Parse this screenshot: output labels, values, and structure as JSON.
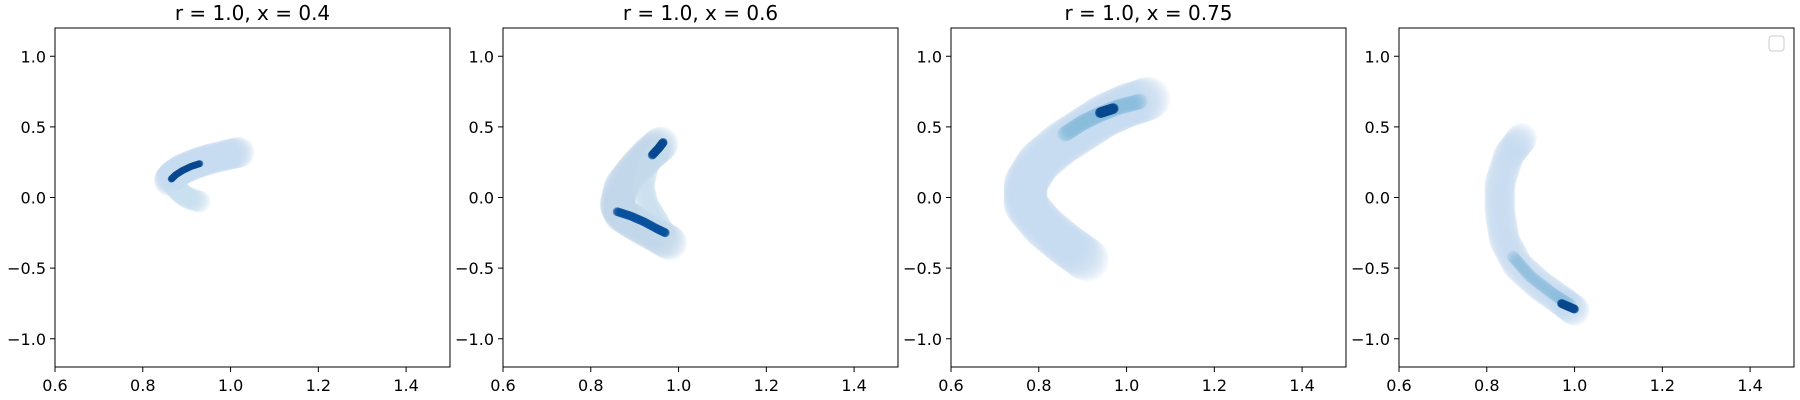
{
  "chart_data": [
    {
      "type": "heatmap",
      "title": "r = 1.0, x = 0.4",
      "xlim": [
        0.6,
        1.5
      ],
      "ylim": [
        -1.2,
        1.2
      ],
      "xticks": [
        "0.6",
        "0.8",
        "1.0",
        "1.2",
        "1.4"
      ],
      "yticks": [
        "1.0",
        "0.5",
        "0.0",
        "−0.5",
        "−1.0"
      ],
      "colormap": "Blues",
      "grid": false,
      "density_curves": [
        {
          "points": [
            [
              0.86,
              0.12
            ],
            [
              0.87,
              0.16
            ],
            [
              0.89,
              0.2
            ],
            [
              0.92,
              0.24
            ],
            [
              0.95,
              0.27
            ],
            [
              0.99,
              0.3
            ],
            [
              1.02,
              0.32
            ]
          ],
          "weight": 0.12,
          "spread": 0.035
        },
        {
          "points": [
            [
              0.87,
              0.1
            ],
            [
              0.88,
              0.05
            ],
            [
              0.9,
              0.0
            ],
            [
              0.93,
              -0.03
            ]
          ],
          "weight": 0.1,
          "spread": 0.025
        },
        {
          "points": [
            [
              0.865,
              0.13
            ],
            [
              0.875,
              0.16
            ],
            [
              0.89,
              0.19
            ],
            [
              0.91,
              0.22
            ],
            [
              0.93,
              0.24
            ]
          ],
          "weight": 0.95,
          "spread": 0.008
        }
      ]
    },
    {
      "type": "heatmap",
      "title": "r = 1.0, x = 0.6",
      "xlim": [
        0.6,
        1.5
      ],
      "ylim": [
        -1.2,
        1.2
      ],
      "xticks": [
        "0.6",
        "0.8",
        "1.0",
        "1.2",
        "1.4"
      ],
      "yticks": [
        "1.0",
        "0.5",
        "0.0",
        "−0.5",
        "−1.0"
      ],
      "colormap": "Blues",
      "grid": false,
      "density_curves": [
        {
          "points": [
            [
              0.96,
              0.38
            ],
            [
              0.93,
              0.3
            ],
            [
              0.9,
              0.2
            ],
            [
              0.87,
              0.08
            ],
            [
              0.86,
              -0.05
            ],
            [
              0.87,
              -0.12
            ],
            [
              0.9,
              -0.18
            ],
            [
              0.94,
              -0.25
            ],
            [
              0.98,
              -0.32
            ]
          ],
          "weight": 0.14,
          "spread": 0.04
        },
        {
          "points": [
            [
              0.96,
              0.36
            ],
            [
              0.93,
              0.22
            ],
            [
              0.92,
              0.08
            ],
            [
              0.93,
              -0.05
            ],
            [
              0.95,
              -0.15
            ],
            [
              0.97,
              -0.26
            ]
          ],
          "weight": 0.1,
          "spread": 0.025
        },
        {
          "points": [
            [
              0.94,
              0.3
            ],
            [
              0.955,
              0.35
            ],
            [
              0.965,
              0.39
            ]
          ],
          "weight": 0.95,
          "spread": 0.01
        },
        {
          "points": [
            [
              0.86,
              -0.1
            ],
            [
              0.89,
              -0.13
            ],
            [
              0.92,
              -0.17
            ],
            [
              0.95,
              -0.22
            ],
            [
              0.97,
              -0.25
            ]
          ],
          "weight": 0.9,
          "spread": 0.01
        }
      ]
    },
    {
      "type": "heatmap",
      "title": "r = 1.0, x = 0.75",
      "xlim": [
        0.6,
        1.5
      ],
      "ylim": [
        -1.2,
        1.2
      ],
      "xticks": [
        "0.6",
        "0.8",
        "1.0",
        "1.2",
        "1.4"
      ],
      "yticks": [
        "1.0",
        "0.5",
        "0.0",
        "−0.5",
        "−1.0"
      ],
      "colormap": "Blues",
      "grid": false,
      "density_curves": [
        {
          "points": [
            [
              0.91,
              -0.44
            ],
            [
              0.86,
              -0.33
            ],
            [
              0.81,
              -0.2
            ],
            [
              0.77,
              -0.05
            ],
            [
              0.77,
              0.1
            ],
            [
              0.8,
              0.25
            ],
            [
              0.85,
              0.38
            ],
            [
              0.9,
              0.48
            ],
            [
              0.95,
              0.58
            ],
            [
              1.0,
              0.65
            ],
            [
              1.05,
              0.7
            ]
          ],
          "weight": 0.12,
          "spread": 0.05
        },
        {
          "points": [
            [
              0.86,
              0.45
            ],
            [
              0.9,
              0.53
            ],
            [
              0.94,
              0.59
            ],
            [
              0.98,
              0.64
            ],
            [
              1.03,
              0.68
            ]
          ],
          "weight": 0.35,
          "spread": 0.018
        },
        {
          "points": [
            [
              0.94,
              0.6
            ],
            [
              0.955,
              0.615
            ],
            [
              0.97,
              0.63
            ]
          ],
          "weight": 0.95,
          "spread": 0.012
        }
      ]
    },
    {
      "type": "heatmap",
      "title": "",
      "xlim": [
        0.6,
        1.5
      ],
      "ylim": [
        -1.2,
        1.2
      ],
      "xticks": [
        "0.6",
        "0.8",
        "1.0",
        "1.2",
        "1.4"
      ],
      "yticks": [
        "1.0",
        "0.5",
        "0.0",
        "−0.5",
        "−1.0"
      ],
      "colormap": "Blues",
      "grid": false,
      "legend": "top-right, empty",
      "density_curves": [
        {
          "points": [
            [
              0.88,
              0.42
            ],
            [
              0.85,
              0.3
            ],
            [
              0.83,
              0.1
            ],
            [
              0.83,
              -0.1
            ],
            [
              0.84,
              -0.3
            ],
            [
              0.87,
              -0.48
            ],
            [
              0.92,
              -0.62
            ],
            [
              0.97,
              -0.73
            ],
            [
              1.0,
              -0.8
            ]
          ],
          "weight": 0.12,
          "spread": 0.035
        },
        {
          "points": [
            [
              0.86,
              -0.42
            ],
            [
              0.9,
              -0.56
            ],
            [
              0.95,
              -0.68
            ],
            [
              0.99,
              -0.76
            ]
          ],
          "weight": 0.35,
          "spread": 0.014
        },
        {
          "points": [
            [
              0.97,
              -0.75
            ],
            [
              0.985,
              -0.77
            ],
            [
              1.0,
              -0.79
            ]
          ],
          "weight": 0.95,
          "spread": 0.01
        }
      ]
    }
  ]
}
